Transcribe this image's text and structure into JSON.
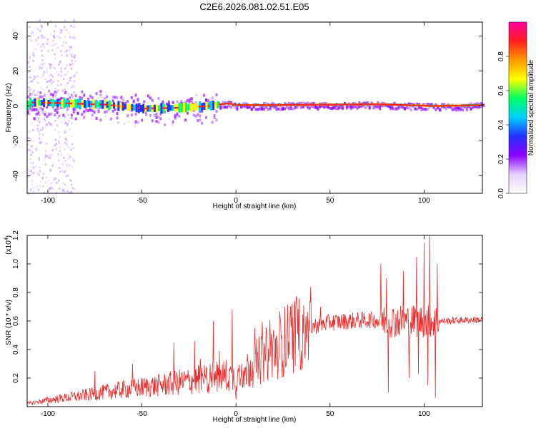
{
  "title": "C2E6.2026.081.02.51.E05",
  "colors": {
    "snr_line": "#ee2b2b",
    "median_line": "#ff2a2a",
    "axis": "#000000"
  },
  "chart_data": [
    {
      "type": "heatmap",
      "xlabel": "Height of straight line (km)",
      "ylabel": "Frequency (Hz)",
      "xlim": [
        -111,
        131
      ],
      "ylim": [
        -50,
        48
      ],
      "x_ticks": [
        "-100",
        "-50",
        "0",
        "50",
        "100"
      ],
      "y_ticks": [
        "40",
        "20",
        "0",
        "-20",
        "-40"
      ],
      "colorbar": {
        "label": "Normalized spectral amplitude",
        "range": [
          0,
          1
        ],
        "ticks": [
          "0.0",
          "0.2",
          "0.4",
          "0.6",
          "0.8"
        ],
        "colors": [
          "#ffffff",
          "#e6d0ff",
          "#8b00ff",
          "#2030ff",
          "#00d0ff",
          "#00ff60",
          "#ffff00",
          "#ff9900",
          "#ff2020",
          "#ff00a0"
        ]
      },
      "ridge": [
        {
          "x": -110,
          "f": 2
        },
        {
          "x": -90,
          "f": 1.5
        },
        {
          "x": -70,
          "f": 0.8
        },
        {
          "x": -50,
          "f": -1.5
        },
        {
          "x": -30,
          "f": -1
        },
        {
          "x": -15,
          "f": 0
        },
        {
          "x": -5,
          "f": 1.5
        },
        {
          "x": 0,
          "f": 0.5
        },
        {
          "x": 20,
          "f": 0.5
        },
        {
          "x": 75,
          "f": 1
        },
        {
          "x": 105,
          "f": 0
        },
        {
          "x": 131,
          "f": 0.5
        }
      ]
    },
    {
      "type": "line",
      "xlabel": "Height of straight line (km)",
      "ylabel": "SNR (10 * v/v)",
      "multiplier_label": "(x10",
      "multiplier_exp": "4",
      "xlim": [
        -111,
        131
      ],
      "ylim": [
        0,
        12000
      ],
      "x_ticks": [
        "-100",
        "-50",
        "0",
        "50",
        "100"
      ],
      "y_ticks": [
        "0.2",
        "0.4",
        "0.6",
        "0.8",
        "1.0",
        "1.2"
      ],
      "trend": [
        {
          "x": -111,
          "y": 200
        },
        {
          "x": -100,
          "y": 450
        },
        {
          "x": -80,
          "y": 800
        },
        {
          "x": -60,
          "y": 1200
        },
        {
          "x": -40,
          "y": 1500
        },
        {
          "x": -20,
          "y": 1900
        },
        {
          "x": -5,
          "y": 2200
        },
        {
          "x": 0,
          "y": 2000
        },
        {
          "x": 10,
          "y": 3000
        },
        {
          "x": 20,
          "y": 4000
        },
        {
          "x": 30,
          "y": 5000
        },
        {
          "x": 40,
          "y": 5600
        },
        {
          "x": 50,
          "y": 5900
        },
        {
          "x": 60,
          "y": 6000
        },
        {
          "x": 75,
          "y": 6100
        },
        {
          "x": 85,
          "y": 6000
        },
        {
          "x": 100,
          "y": 6000
        },
        {
          "x": 110,
          "y": 6000
        },
        {
          "x": 131,
          "y": 6100
        }
      ],
      "peaks": [
        {
          "x": -75,
          "y": 2500
        },
        {
          "x": -55,
          "y": 3000
        },
        {
          "x": -33,
          "y": 4500
        },
        {
          "x": -22,
          "y": 4600
        },
        {
          "x": -12,
          "y": 6000
        },
        {
          "x": -2,
          "y": 6800
        },
        {
          "x": 0,
          "y": 500
        },
        {
          "x": 10,
          "y": 5500
        },
        {
          "x": 45,
          "y": 7000
        },
        {
          "x": 77,
          "y": 10000
        },
        {
          "x": 80,
          "y": 9000
        },
        {
          "x": 81,
          "y": 1000
        },
        {
          "x": 89,
          "y": 9500
        },
        {
          "x": 92,
          "y": 2000
        },
        {
          "x": 96,
          "y": 10500
        },
        {
          "x": 97,
          "y": 2300
        },
        {
          "x": 100,
          "y": 11500
        },
        {
          "x": 102,
          "y": 1500
        },
        {
          "x": 103,
          "y": 12000
        },
        {
          "x": 106,
          "y": 600
        },
        {
          "x": 107,
          "y": 10000
        }
      ]
    }
  ]
}
